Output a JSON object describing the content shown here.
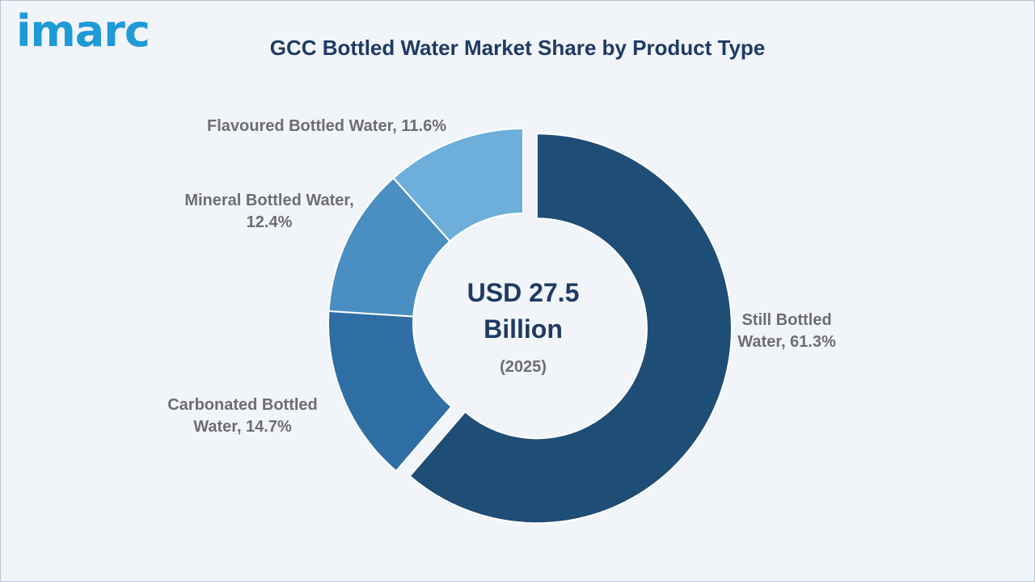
{
  "logo": {
    "text": "imarc"
  },
  "chart_data": {
    "type": "pie",
    "variant": "donut",
    "title": "GCC Bottled Water Market Share by Product Type",
    "center_text": {
      "line1": "USD 27.5",
      "line2": "Billion",
      "line3": "(2025)"
    },
    "slices": [
      {
        "label": [
          "Still Bottled",
          "Water, 61.3%"
        ],
        "value": 61.3,
        "color": "#1e4d76"
      },
      {
        "label": [
          "Carbonated Bottled",
          "Water, 14.7%"
        ],
        "value": 14.7,
        "color": "#2f6ea4"
      },
      {
        "label": [
          "Mineral Bottled Water,",
          "12.4%"
        ],
        "value": 12.4,
        "color": "#4a8fc2"
      },
      {
        "label": [
          "Flavoured Bottled Water, 11.6%"
        ],
        "value": 11.6,
        "color": "#6dafda"
      }
    ],
    "legend": "none"
  }
}
